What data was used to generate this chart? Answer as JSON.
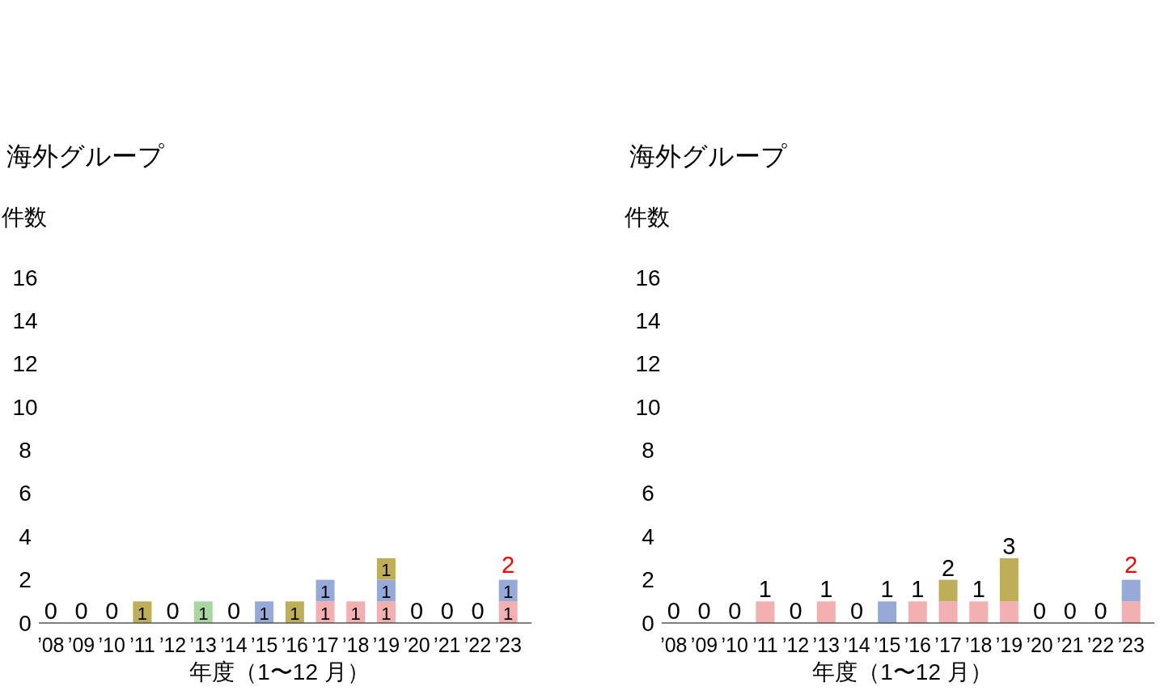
{
  "chart_data": [
    {
      "type": "bar",
      "stacked": true,
      "title": "海外グループ",
      "ylabel": "件数",
      "xlabel": "年度（1〜12 月）",
      "categories": [
        "’08",
        "’09",
        "’10",
        "’11",
        "’12",
        "’13",
        "’14",
        "’15",
        "’16",
        "’17",
        "’18",
        "’19",
        "’20",
        "’21",
        "’22",
        "’23"
      ],
      "ylim": [
        0,
        16
      ],
      "yticks": [
        0,
        2,
        4,
        6,
        8,
        10,
        12,
        14,
        16
      ],
      "series": [
        {
          "color": "#f2b0b0",
          "values": [
            0,
            0,
            0,
            0,
            0,
            0,
            0,
            0,
            0,
            1,
            1,
            1,
            0,
            0,
            0,
            1
          ],
          "value_labels": [
            null,
            null,
            null,
            null,
            null,
            null,
            null,
            null,
            null,
            "1",
            "1",
            "1",
            null,
            null,
            null,
            "1"
          ]
        },
        {
          "color": "#95aad8",
          "values": [
            0,
            0,
            0,
            0,
            0,
            0,
            0,
            1,
            0,
            1,
            0,
            1,
            0,
            0,
            0,
            1
          ],
          "value_labels": [
            null,
            null,
            null,
            null,
            null,
            null,
            null,
            "1",
            null,
            "1",
            null,
            "1",
            null,
            null,
            null,
            "1"
          ]
        },
        {
          "color": "#bfae58",
          "values": [
            0,
            0,
            0,
            1,
            0,
            0,
            0,
            0,
            1,
            0,
            0,
            1,
            0,
            0,
            0,
            0
          ],
          "value_labels": [
            null,
            null,
            null,
            "1",
            null,
            null,
            null,
            null,
            "1",
            null,
            null,
            "1",
            null,
            null,
            null,
            null
          ]
        },
        {
          "color": "#aad6a0",
          "values": [
            0,
            0,
            0,
            0,
            0,
            1,
            0,
            0,
            0,
            0,
            0,
            0,
            0,
            0,
            0,
            0
          ],
          "value_labels": [
            null,
            null,
            null,
            null,
            null,
            "1",
            null,
            null,
            null,
            null,
            null,
            null,
            null,
            null,
            null,
            null
          ]
        }
      ],
      "totals": [
        "0",
        "0",
        "0",
        null,
        "0",
        null,
        "0",
        null,
        null,
        null,
        null,
        null,
        "0",
        "0",
        "0",
        null
      ],
      "annotations": [
        {
          "text": "2",
          "x": "’23",
          "y": 2
        }
      ]
    },
    {
      "type": "bar",
      "stacked": true,
      "title": "海外グループ",
      "ylabel": "件数",
      "xlabel": "年度（1〜12 月）",
      "categories": [
        "’08",
        "’09",
        "’10",
        "’11",
        "’12",
        "’13",
        "’14",
        "’15",
        "’16",
        "’17",
        "’18",
        "’19",
        "’20",
        "’21",
        "’22",
        "’23"
      ],
      "ylim": [
        0,
        16
      ],
      "yticks": [
        0,
        2,
        4,
        6,
        8,
        10,
        12,
        14,
        16
      ],
      "series": [
        {
          "color": "#f2b0b0",
          "values": [
            0,
            0,
            0,
            1,
            0,
            1,
            0,
            0,
            1,
            1,
            1,
            1,
            0,
            0,
            0,
            1
          ]
        },
        {
          "color": "#95aad8",
          "values": [
            0,
            0,
            0,
            0,
            0,
            0,
            0,
            1,
            0,
            0,
            0,
            0,
            0,
            0,
            0,
            1
          ]
        },
        {
          "color": "#bfae58",
          "values": [
            0,
            0,
            0,
            0,
            0,
            0,
            0,
            0,
            0,
            1,
            0,
            2,
            0,
            0,
            0,
            0
          ]
        }
      ],
      "totals": [
        "0",
        "0",
        "0",
        "1",
        "0",
        "1",
        "0",
        "1",
        "1",
        "2",
        "1",
        "3",
        "0",
        "0",
        "0",
        null
      ],
      "annotations": [
        {
          "text": "2",
          "x": "’23",
          "y": 2
        }
      ]
    }
  ]
}
